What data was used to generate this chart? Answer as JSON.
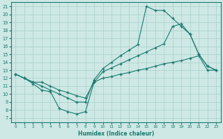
{
  "line_top": {
    "x": [
      0,
      1,
      2,
      3,
      4,
      5,
      6,
      7,
      8,
      9,
      10,
      11,
      12,
      13,
      14,
      15,
      16,
      17,
      18,
      19,
      20,
      21,
      22,
      23
    ],
    "y": [
      12.5,
      12.0,
      11.5,
      11.0,
      10.5,
      10.0,
      9.5,
      9.0,
      9.0,
      11.8,
      13.2,
      14.0,
      14.8,
      15.5,
      16.2,
      21.0,
      20.5,
      20.5,
      19.5,
      18.5,
      17.5,
      15.0,
      13.5,
      13.0
    ]
  },
  "line_mid": {
    "x": [
      0,
      1,
      2,
      3,
      4,
      5,
      6,
      7,
      8,
      9,
      10,
      11,
      12,
      13,
      14,
      15,
      16,
      17,
      18,
      19,
      20,
      21,
      22,
      23
    ],
    "y": [
      12.5,
      12.0,
      11.5,
      11.5,
      11.0,
      10.5,
      10.2,
      9.8,
      9.5,
      11.5,
      12.8,
      13.3,
      13.8,
      14.3,
      14.8,
      15.3,
      15.8,
      16.3,
      18.5,
      18.8,
      17.5,
      15.0,
      13.5,
      13.0
    ]
  },
  "line_bot": {
    "x": [
      0,
      1,
      2,
      3,
      4,
      5,
      6,
      7,
      8,
      9,
      10,
      11,
      12,
      13,
      14,
      15,
      16,
      17,
      18,
      19,
      20,
      21,
      22,
      23
    ],
    "y": [
      12.5,
      12.0,
      11.3,
      10.5,
      10.3,
      8.2,
      7.8,
      7.5,
      7.8,
      11.5,
      12.0,
      12.2,
      12.5,
      12.7,
      13.0,
      13.2,
      13.5,
      13.8,
      14.0,
      14.2,
      14.5,
      14.8,
      13.0,
      13.0
    ]
  },
  "color": "#1a7a6e",
  "bg_color": "#cde8e5",
  "grid_color": "#aacfcc",
  "xlabel": "Humidex (Indice chaleur)",
  "ylim": [
    6.5,
    21.5
  ],
  "xlim": [
    -0.5,
    23.5
  ],
  "yticks": [
    7,
    8,
    9,
    10,
    11,
    12,
    13,
    14,
    15,
    16,
    17,
    18,
    19,
    20,
    21
  ],
  "xticks": [
    0,
    1,
    2,
    3,
    4,
    5,
    6,
    7,
    8,
    9,
    10,
    11,
    12,
    13,
    14,
    15,
    16,
    17,
    18,
    19,
    20,
    21,
    22,
    23
  ]
}
